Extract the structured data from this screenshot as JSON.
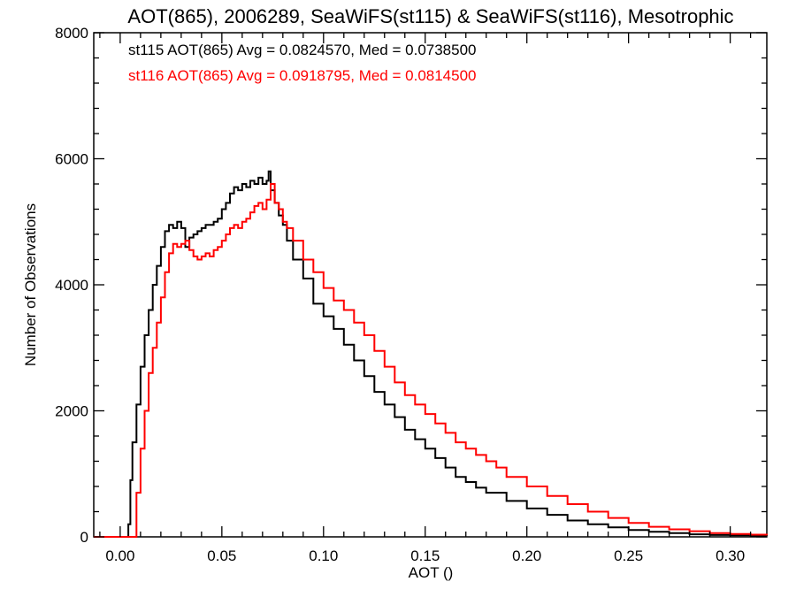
{
  "chart_data": {
    "type": "line",
    "title": "AOT(865), 2006289, SeaWiFS(st115) & SeaWiFS(st116), Mesotrophic",
    "xlabel": "AOT ()",
    "ylabel": "Number of Observations",
    "xlim": [
      -0.013,
      0.318
    ],
    "ylim": [
      0,
      8000
    ],
    "xticks": [
      0.0,
      0.05,
      0.1,
      0.15,
      0.2,
      0.25,
      0.3
    ],
    "xtick_labels": [
      "0.00",
      "0.05",
      "0.10",
      "0.15",
      "0.20",
      "0.25",
      "0.30"
    ],
    "yticks": [
      0,
      2000,
      4000,
      6000,
      8000
    ],
    "ytick_labels": [
      "0",
      "2000",
      "4000",
      "6000",
      "8000"
    ],
    "grid": false,
    "legend_placement": "top-left",
    "series": [
      {
        "name": "st115",
        "color": "#000000",
        "stats_text": "st115 AOT(865) Avg = 0.0824570, Med = 0.0738500",
        "x": [
          -0.013,
          0.0,
          0.004,
          0.005,
          0.006,
          0.008,
          0.01,
          0.012,
          0.014,
          0.016,
          0.018,
          0.02,
          0.022,
          0.024,
          0.026,
          0.028,
          0.03,
          0.032,
          0.034,
          0.036,
          0.038,
          0.04,
          0.042,
          0.044,
          0.046,
          0.048,
          0.05,
          0.052,
          0.054,
          0.056,
          0.058,
          0.06,
          0.062,
          0.064,
          0.066,
          0.068,
          0.07,
          0.072,
          0.073,
          0.074,
          0.076,
          0.078,
          0.08,
          0.082,
          0.085,
          0.09,
          0.095,
          0.1,
          0.105,
          0.11,
          0.115,
          0.12,
          0.125,
          0.13,
          0.135,
          0.14,
          0.145,
          0.15,
          0.155,
          0.16,
          0.165,
          0.17,
          0.175,
          0.18,
          0.19,
          0.2,
          0.21,
          0.22,
          0.23,
          0.24,
          0.25,
          0.26,
          0.27,
          0.28,
          0.29,
          0.3,
          0.31,
          0.318
        ],
        "y": [
          0,
          0,
          200,
          900,
          1500,
          2100,
          2700,
          3200,
          3600,
          4000,
          4300,
          4600,
          4850,
          4950,
          4900,
          5000,
          4900,
          4600,
          4750,
          4800,
          4850,
          4900,
          4950,
          4950,
          5000,
          5050,
          5200,
          5300,
          5450,
          5550,
          5500,
          5600,
          5550,
          5650,
          5600,
          5700,
          5600,
          5650,
          5800,
          5500,
          5300,
          5100,
          4950,
          4700,
          4400,
          4100,
          3700,
          3500,
          3300,
          3050,
          2800,
          2550,
          2300,
          2100,
          1900,
          1700,
          1550,
          1400,
          1250,
          1100,
          950,
          870,
          780,
          700,
          570,
          450,
          350,
          260,
          200,
          150,
          110,
          80,
          60,
          40,
          30,
          25,
          18,
          15
        ]
      },
      {
        "name": "st116",
        "color": "#ff0000",
        "stats_text": "st116 AOT(865) Avg = 0.0918795, Med = 0.0814500",
        "x": [
          -0.013,
          0.0,
          0.005,
          0.008,
          0.01,
          0.012,
          0.014,
          0.016,
          0.018,
          0.02,
          0.022,
          0.024,
          0.026,
          0.028,
          0.03,
          0.032,
          0.034,
          0.036,
          0.038,
          0.04,
          0.042,
          0.044,
          0.046,
          0.048,
          0.05,
          0.052,
          0.054,
          0.056,
          0.058,
          0.06,
          0.062,
          0.064,
          0.066,
          0.068,
          0.07,
          0.072,
          0.074,
          0.076,
          0.078,
          0.08,
          0.082,
          0.085,
          0.09,
          0.095,
          0.1,
          0.105,
          0.11,
          0.115,
          0.12,
          0.125,
          0.13,
          0.135,
          0.14,
          0.145,
          0.15,
          0.155,
          0.16,
          0.165,
          0.17,
          0.175,
          0.18,
          0.185,
          0.19,
          0.2,
          0.21,
          0.22,
          0.23,
          0.24,
          0.25,
          0.26,
          0.27,
          0.28,
          0.29,
          0.3,
          0.31,
          0.318
        ],
        "y": [
          0,
          0,
          0,
          700,
          1400,
          2000,
          2600,
          3000,
          3400,
          3800,
          4200,
          4500,
          4650,
          4600,
          4650,
          4700,
          4550,
          4450,
          4400,
          4450,
          4500,
          4450,
          4550,
          4600,
          4700,
          4800,
          4900,
          4950,
          4900,
          5000,
          5050,
          5150,
          5250,
          5300,
          5200,
          5350,
          5600,
          5300,
          5200,
          5000,
          4900,
          4700,
          4400,
          4200,
          3950,
          3750,
          3600,
          3400,
          3200,
          2950,
          2700,
          2450,
          2250,
          2100,
          1950,
          1800,
          1650,
          1500,
          1400,
          1300,
          1200,
          1100,
          950,
          800,
          650,
          520,
          400,
          300,
          220,
          160,
          120,
          90,
          60,
          45,
          35,
          25
        ]
      }
    ]
  }
}
